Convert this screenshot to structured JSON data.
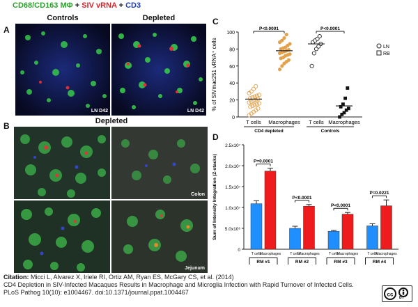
{
  "figure": {
    "header": {
      "part1": "CD68/CD163 MΦ",
      "plus1": " + ",
      "part2": "SIV vRNA",
      "plus2": " + ",
      "part3": "CD3"
    },
    "panel_labels": {
      "a": "A",
      "b": "B",
      "c": "C",
      "d": "D"
    },
    "panel_a": {
      "col_left": "Controls",
      "col_right": "Depleted",
      "tag_left": "LN D42",
      "tag_right": "LN D42"
    },
    "panel_b": {
      "title": "Depleted",
      "tag_colon": "Colon",
      "tag_jejunum": "Jejunum"
    },
    "colors": {
      "fluor_green": "#2ca02c",
      "fluor_red": "#d6242a",
      "fluor_blue": "#1f3fb8",
      "bar_blue": "#1f8fff",
      "bar_red": "#ee1c1c",
      "dot_orange": "#e2a14a"
    }
  },
  "chart_data": [
    {
      "id": "C",
      "type": "scatter",
      "ylabel": "% of SIVmac251 vRNA⁺ cells",
      "ylim": [
        0,
        100
      ],
      "yticks": [
        0,
        20,
        40,
        60,
        80,
        100
      ],
      "categories": [
        "T cells",
        "Macrophages",
        "T cells",
        "Macrophages"
      ],
      "group_labels": [
        "CD4 depleted",
        "Controls"
      ],
      "pvalues": [
        "P<0.0001",
        "P<0.0001"
      ],
      "legend": [
        "LN",
        "RB"
      ],
      "series": [
        {
          "values": [
            2,
            4,
            6,
            8,
            10,
            12,
            13,
            14,
            15,
            16,
            17,
            18,
            19,
            20,
            21,
            22,
            23,
            24,
            25,
            26,
            28,
            30,
            33,
            36
          ],
          "mean": 21
        },
        {
          "values": [
            56,
            60,
            63,
            65,
            67,
            69,
            70,
            72,
            73,
            74,
            75,
            76,
            77,
            78,
            79,
            80,
            81,
            82,
            84,
            86,
            88,
            90,
            93,
            97
          ],
          "mean": 78
        },
        {
          "values": [
            60,
            75,
            80,
            83,
            86,
            88,
            90,
            92,
            95
          ],
          "mean": 86
        },
        {
          "values": [
            0,
            3,
            5,
            8,
            10,
            12,
            15,
            22,
            34
          ],
          "mean": 13
        }
      ]
    },
    {
      "id": "D",
      "type": "bar",
      "ylabel": "Sum of Intensity Integration (Z-stacks)",
      "ylim": [
        0,
        25000000
      ],
      "ytick_labels": [
        "0",
        "5.0x10⁶",
        "1.0x10⁷",
        "1.5x10⁷",
        "2.0x10⁷",
        "2.5x10⁷"
      ],
      "groups": [
        "RM #1",
        "RM #2",
        "RM #3",
        "RM #4"
      ],
      "category_labels": [
        "T cells",
        "Macrophages"
      ],
      "pvalues": [
        "P=0.0001",
        "P<0.0001",
        "P<0.0001",
        "P=0.0221"
      ],
      "series": [
        {
          "name": "T cells",
          "values": [
            10900000,
            5000000,
            4300000,
            5600000
          ],
          "errors": [
            700000,
            500000,
            200000,
            500000
          ]
        },
        {
          "name": "Macrophages",
          "values": [
            18700000,
            10300000,
            8400000,
            10400000
          ],
          "errors": [
            700000,
            400000,
            400000,
            1400000
          ]
        }
      ]
    }
  ],
  "caption": {
    "citation_label": "Citation:",
    "citation_text": " Micci L, Alvarez X, Iriele RI, Ortiz AM, Ryan ES, McGary CS, et al. (2014)",
    "title": "CD4 Depletion in SIV-Infected Macaques Results in Macrophage and Microglia Infection with Rapid Turnover of Infected Cells.",
    "journal": "PLoS Pathog 10(10): e1004467. doi:10.1371/journal.ppat.1004467"
  },
  "license_badge": {
    "text": "BY"
  }
}
